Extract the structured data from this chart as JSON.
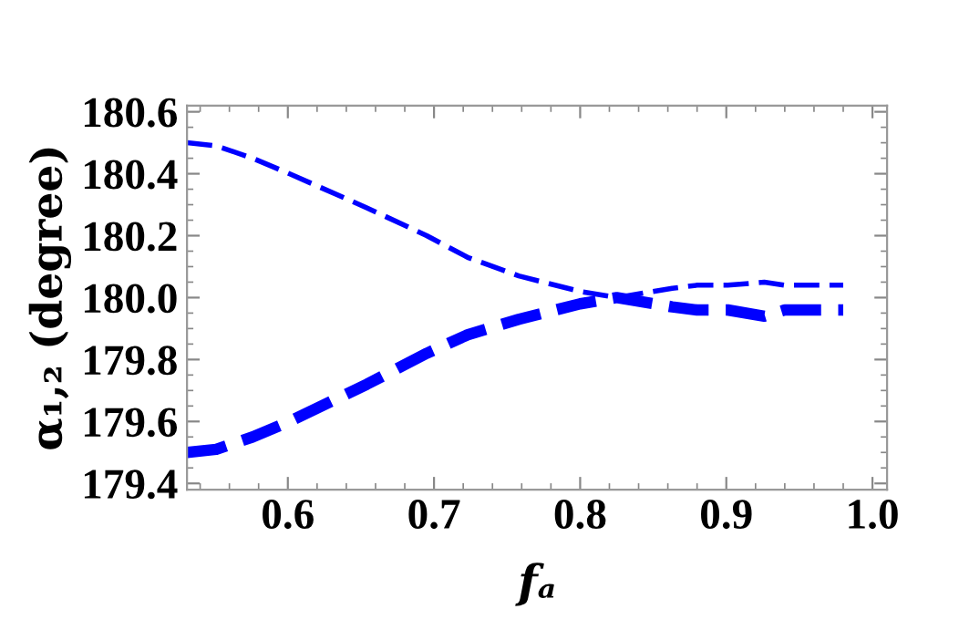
{
  "chart_data": {
    "type": "line",
    "xlabel": "fₐ",
    "ylabel": "α₁,₂ (degree)",
    "xlim": [
      0.531,
      1.01
    ],
    "ylim": [
      179.38,
      180.62
    ],
    "xticks": [
      0.6,
      0.7,
      0.8,
      0.9,
      {
        "value": 1.0,
        "label": "1.0"
      }
    ],
    "yticks": [
      179.4,
      179.6,
      179.8,
      {
        "value": 180.0,
        "label": "180.0"
      },
      180.2,
      180.4,
      180.6
    ],
    "grid": false,
    "legend": false,
    "line_style": "dashed",
    "marker": "none",
    "x": [
      0.531,
      0.551,
      0.576,
      0.601,
      0.654,
      0.695,
      0.723,
      0.758,
      0.8,
      0.825,
      0.863,
      0.88,
      0.901,
      0.926,
      0.94,
      0.98
    ],
    "series": [
      {
        "color": "#0000ff",
        "values": [
          180.5,
          180.49,
          180.45,
          180.4,
          180.29,
          180.2,
          180.13,
          180.07,
          180.02,
          180.0,
          180.03,
          180.04,
          180.04,
          180.05,
          180.04,
          180.04
        ]
      },
      {
        "color": "#0000ff",
        "values": [
          179.5,
          179.51,
          179.55,
          179.6,
          179.72,
          179.82,
          179.88,
          179.93,
          179.98,
          180.0,
          179.97,
          179.96,
          179.96,
          179.94,
          179.96,
          179.96
        ]
      }
    ]
  }
}
